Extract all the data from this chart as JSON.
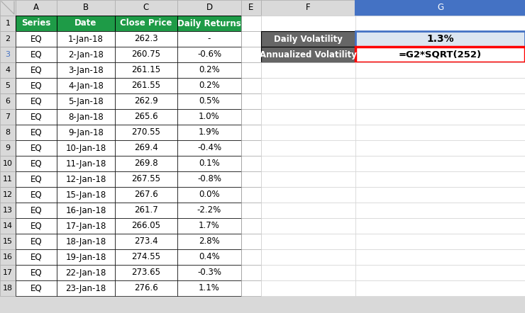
{
  "col_headers": [
    "Series",
    "Date",
    "Close Price",
    "Daily Returns"
  ],
  "header_bg": "#1e9b47",
  "header_text_color": "#ffffff",
  "rows": [
    [
      "EQ",
      "1-Jan-18",
      "262.3",
      "-"
    ],
    [
      "EQ",
      "2-Jan-18",
      "260.75",
      "-0.6%"
    ],
    [
      "EQ",
      "3-Jan-18",
      "261.15",
      "0.2%"
    ],
    [
      "EQ",
      "4-Jan-18",
      "261.55",
      "0.2%"
    ],
    [
      "EQ",
      "5-Jan-18",
      "262.9",
      "0.5%"
    ],
    [
      "EQ",
      "8-Jan-18",
      "265.6",
      "1.0%"
    ],
    [
      "EQ",
      "9-Jan-18",
      "270.55",
      "1.9%"
    ],
    [
      "EQ",
      "10-Jan-18",
      "269.4",
      "-0.4%"
    ],
    [
      "EQ",
      "11-Jan-18",
      "269.8",
      "0.1%"
    ],
    [
      "EQ",
      "12-Jan-18",
      "267.55",
      "-0.8%"
    ],
    [
      "EQ",
      "15-Jan-18",
      "267.6",
      "0.0%"
    ],
    [
      "EQ",
      "16-Jan-18",
      "261.7",
      "-2.2%"
    ],
    [
      "EQ",
      "17-Jan-18",
      "266.05",
      "1.7%"
    ],
    [
      "EQ",
      "18-Jan-18",
      "273.4",
      "2.8%"
    ],
    [
      "EQ",
      "19-Jan-18",
      "274.55",
      "0.4%"
    ],
    [
      "EQ",
      "22-Jan-18",
      "273.65",
      "-0.3%"
    ],
    [
      "EQ",
      "23-Jan-18",
      "276.6",
      "1.1%"
    ]
  ],
  "col_label_bg": "#d9d9d9",
  "col_label_text": "#000000",
  "row_label_bg": "#d9d9d9",
  "cell_bg": "#ffffff",
  "grid_color": "#aaaaaa",
  "header_row_grid": "#000000",
  "daily_vol_label": "Daily Volatility",
  "daily_vol_value": "1.3%",
  "annualized_vol_label": "Annualized Volatility",
  "annualized_vol_formula": "=G2*SQRT(252)",
  "formula_border_color": "#ff0000",
  "value_border_color": "#4472c4",
  "value_bg": "#dce6f1",
  "formula_bg": "#ffffff",
  "panel_label_bg": "#666666",
  "panel_label_text": "#ffffff",
  "col_g_header_bg": "#4472c4",
  "col_g_header_text": "#ffffff",
  "row3_highlight": "#4472c4",
  "fig_bg": "#d9d9d9"
}
